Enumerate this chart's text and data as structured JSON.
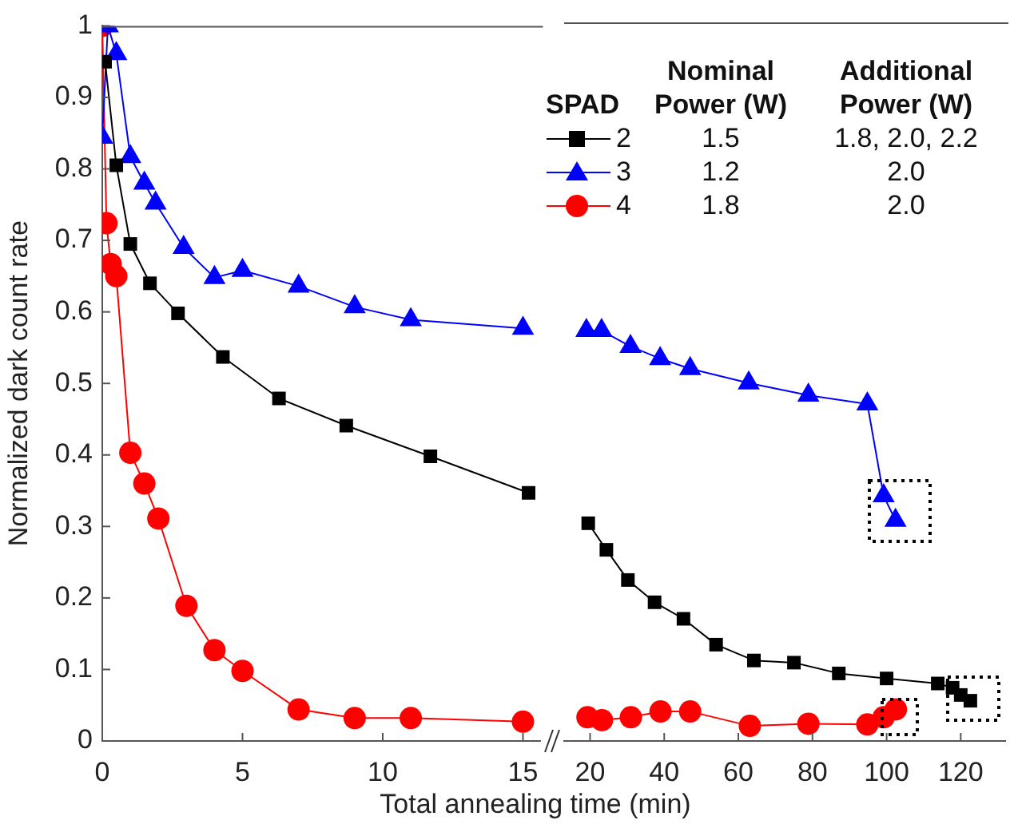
{
  "chart_data": [
    {
      "type": "line",
      "ylabel": "Normalized dark count rate",
      "xlabel": "Total annealing time (min)",
      "xlim": [
        0,
        15.6
      ],
      "xticks": [
        0,
        5,
        10,
        15
      ],
      "ylim": [
        0,
        1
      ],
      "yticks": [
        0,
        0.1,
        0.2,
        0.3,
        0.4,
        0.5,
        0.6,
        0.7,
        0.8,
        0.9,
        1
      ],
      "series": [
        {
          "color": "#000000",
          "marker": "square",
          "x": [
            0.1,
            0.5,
            1,
            1.7,
            2.7,
            4.3,
            6.3,
            8.7,
            11.7,
            15.2
          ],
          "values": [
            0.95,
            0.805,
            0.695,
            0.64,
            0.598,
            0.537,
            0.479,
            0.441,
            0.398,
            0.347
          ]
        },
        {
          "color": "#0000ff",
          "marker": "triangle",
          "x": [
            0,
            0.2,
            0.5,
            1,
            1.5,
            1.9,
            2.9,
            4,
            5,
            7,
            9,
            11,
            15
          ],
          "values": [
            0.844,
            1,
            0.961,
            0.817,
            0.78,
            0.752,
            0.69,
            0.648,
            0.658,
            0.636,
            0.607,
            0.589,
            0.577
          ]
        },
        {
          "color": "#ff0000",
          "marker": "circle",
          "x": [
            0,
            0.15,
            0.3,
            0.5,
            1,
            1.5,
            2,
            3,
            4,
            5,
            7,
            9,
            11,
            15
          ],
          "values": [
            1,
            0.724,
            0.667,
            0.65,
            0.403,
            0.36,
            0.311,
            0.189,
            0.127,
            0.098,
            0.044,
            0.032,
            0.032,
            0.027
          ]
        }
      ]
    },
    {
      "type": "line",
      "xlim": [
        13,
        132
      ],
      "xticks": [
        20,
        40,
        60,
        80,
        100,
        120
      ],
      "ylim": [
        0,
        1
      ],
      "tick_labels": "x",
      "legend": "top",
      "legend_title": "SPAD",
      "annotations": [
        "Nominal Power (W)",
        "1.5",
        "1.2",
        "1.8",
        "Additional Power (W)",
        "1.8, 2.0, 2.2",
        "2.0",
        "2.0"
      ],
      "series": [
        {
          "name": "2",
          "color": "#000000",
          "marker": "square",
          "x": [
            19.5,
            24.4,
            30.2,
            37.4,
            45.2,
            54,
            64.2,
            75,
            87.1,
            100,
            113.8,
            117.8,
            120,
            122.6
          ],
          "values": [
            0.303,
            0.266,
            0.224,
            0.193,
            0.17,
            0.134,
            0.112,
            0.109,
            0.094,
            0.087,
            0.08,
            0.074,
            0.064,
            0.056
          ]
        },
        {
          "name": "3",
          "color": "#0000ff",
          "marker": "triangle",
          "x": [
            19,
            23.1,
            30.9,
            38.9,
            47,
            62.8,
            78.9,
            94.8,
            99.2,
            102.4
          ],
          "values": [
            0.571,
            0.571,
            0.549,
            0.532,
            0.518,
            0.498,
            0.481,
            0.469,
            0.341,
            0.307
          ]
        },
        {
          "name": "4",
          "color": "#ff0000",
          "marker": "circle",
          "x": [
            19.3,
            23.2,
            31,
            39,
            47,
            63.1,
            78.9,
            94.8,
            99.2,
            102.5
          ],
          "values": [
            0.033,
            0.029,
            0.033,
            0.041,
            0.041,
            0.021,
            0.024,
            0.023,
            0.033,
            0.044
          ]
        }
      ]
    }
  ]
}
